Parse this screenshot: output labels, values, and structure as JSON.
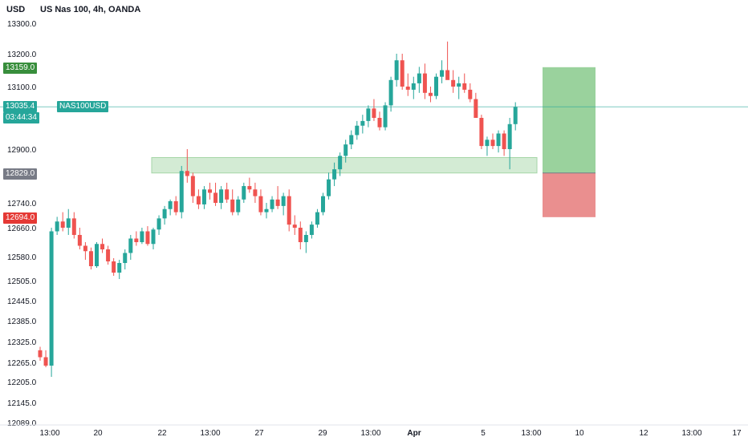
{
  "header": {
    "currency": "USD",
    "title": "US Nas 100, 4h, OANDA"
  },
  "price_tags": {
    "target": "13159.0",
    "current": "13035.4",
    "countdown": "03:44:34",
    "symbol": "NAS100USD",
    "entry": "12829.0",
    "stop": "12694.0"
  },
  "colors": {
    "up": "#26a69a",
    "down": "#ef5350",
    "target_zone": "#81c784",
    "stop_zone": "#e57373",
    "zone": "#c8e6c9",
    "current_line": "#26a69a",
    "entry_tag": "#787b86",
    "target_tag": "#388e3c",
    "stop_tag": "#e53935"
  },
  "chart_data": {
    "type": "candlestick",
    "symbol": "US Nas 100",
    "timeframe": "4h",
    "source": "OANDA",
    "y_ticks": [
      "13300.0",
      "13200.0",
      "13100.0",
      "12900.0",
      "12740.0",
      "12660.0",
      "12580.0",
      "12505.0",
      "12445.0",
      "12385.0",
      "12325.0",
      "12265.0",
      "12205.0",
      "12145.0",
      "12089.0"
    ],
    "x_ticks": [
      "13:00",
      "20",
      "22",
      "13:00",
      "27",
      "29",
      "13:00",
      "Apr",
      "5",
      "13:00",
      "10",
      "12",
      "13:00",
      "17"
    ],
    "candles": [
      [
        12300,
        12310,
        12270,
        12280
      ],
      [
        12280,
        12300,
        12250,
        12255
      ],
      [
        12255,
        12660,
        12220,
        12650
      ],
      [
        12650,
        12695,
        12640,
        12680
      ],
      [
        12680,
        12710,
        12650,
        12660
      ],
      [
        12660,
        12720,
        12640,
        12690
      ],
      [
        12690,
        12710,
        12630,
        12640
      ],
      [
        12640,
        12660,
        12600,
        12610
      ],
      [
        12610,
        12620,
        12570,
        12595
      ],
      [
        12595,
        12605,
        12540,
        12550
      ],
      [
        12550,
        12620,
        12545,
        12615
      ],
      [
        12615,
        12630,
        12590,
        12600
      ],
      [
        12600,
        12610,
        12555,
        12565
      ],
      [
        12565,
        12575,
        12520,
        12530
      ],
      [
        12530,
        12570,
        12510,
        12560
      ],
      [
        12560,
        12600,
        12540,
        12590
      ],
      [
        12590,
        12640,
        12570,
        12630
      ],
      [
        12630,
        12650,
        12610,
        12620
      ],
      [
        12620,
        12660,
        12615,
        12650
      ],
      [
        12650,
        12665,
        12610,
        12615
      ],
      [
        12615,
        12660,
        12600,
        12655
      ],
      [
        12655,
        12700,
        12640,
        12690
      ],
      [
        12690,
        12730,
        12670,
        12720
      ],
      [
        12720,
        12750,
        12700,
        12745
      ],
      [
        12745,
        12760,
        12700,
        12710
      ],
      [
        12710,
        12850,
        12690,
        12835
      ],
      [
        12835,
        12900,
        12800,
        12820
      ],
      [
        12820,
        12830,
        12740,
        12760
      ],
      [
        12760,
        12780,
        12720,
        12735
      ],
      [
        12735,
        12790,
        12720,
        12780
      ],
      [
        12780,
        12800,
        12750,
        12770
      ],
      [
        12770,
        12800,
        12730,
        12740
      ],
      [
        12740,
        12790,
        12720,
        12780
      ],
      [
        12780,
        12800,
        12740,
        12750
      ],
      [
        12750,
        12780,
        12700,
        12710
      ],
      [
        12710,
        12760,
        12700,
        12750
      ],
      [
        12750,
        12800,
        12740,
        12790
      ],
      [
        12790,
        12815,
        12770,
        12780
      ],
      [
        12780,
        12800,
        12740,
        12760
      ],
      [
        12760,
        12780,
        12700,
        12710
      ],
      [
        12710,
        12740,
        12690,
        12720
      ],
      [
        12720,
        12760,
        12710,
        12750
      ],
      [
        12750,
        12790,
        12720,
        12730
      ],
      [
        12730,
        12770,
        12700,
        12760
      ],
      [
        12760,
        12780,
        12650,
        12670
      ],
      [
        12670,
        12700,
        12640,
        12660
      ],
      [
        12660,
        12680,
        12600,
        12620
      ],
      [
        12620,
        12650,
        12590,
        12640
      ],
      [
        12640,
        12680,
        12630,
        12670
      ],
      [
        12670,
        12720,
        12660,
        12710
      ],
      [
        12710,
        12770,
        12700,
        12760
      ],
      [
        12760,
        12830,
        12750,
        12810
      ],
      [
        12810,
        12860,
        12790,
        12840
      ],
      [
        12840,
        12890,
        12820,
        12880
      ],
      [
        12880,
        12930,
        12860,
        12915
      ],
      [
        12915,
        12960,
        12900,
        12945
      ],
      [
        12945,
        12990,
        12930,
        12975
      ],
      [
        12975,
        13010,
        12950,
        12990
      ],
      [
        12990,
        13040,
        12970,
        13030
      ],
      [
        13030,
        13060,
        12990,
        13000
      ],
      [
        13000,
        13020,
        12960,
        12970
      ],
      [
        12970,
        13050,
        12960,
        13040
      ],
      [
        13040,
        13130,
        13020,
        13120
      ],
      [
        13120,
        13200,
        13100,
        13180
      ],
      [
        13180,
        13200,
        13090,
        13100
      ],
      [
        13100,
        13140,
        13070,
        13090
      ],
      [
        13090,
        13130,
        13060,
        13110
      ],
      [
        13110,
        13160,
        13080,
        13140
      ],
      [
        13140,
        13170,
        13060,
        13080
      ],
      [
        13080,
        13100,
        13050,
        13070
      ],
      [
        13070,
        13140,
        13060,
        13130
      ],
      [
        13130,
        13180,
        13110,
        13150
      ],
      [
        13150,
        13240,
        13130,
        13120
      ],
      [
        13120,
        13150,
        13080,
        13100
      ],
      [
        13100,
        13130,
        13060,
        13110
      ],
      [
        13110,
        13140,
        13080,
        13090
      ],
      [
        13090,
        13110,
        13050,
        13060
      ],
      [
        13060,
        13080,
        13000,
        13000
      ],
      [
        13000,
        13010,
        12900,
        12910
      ],
      [
        12910,
        12940,
        12880,
        12930
      ],
      [
        12930,
        12950,
        12900,
        12910
      ],
      [
        12910,
        12960,
        12890,
        12950
      ],
      [
        12950,
        12960,
        12880,
        12900
      ],
      [
        12900,
        13000,
        12840,
        12980
      ],
      [
        12980,
        13050,
        12960,
        13035
      ]
    ],
    "zone": {
      "from": 12829.0,
      "to": 12875.0
    },
    "position": {
      "target": 13159.0,
      "entry": 12829.0,
      "stop": 12694.0
    },
    "current_price": 13035.4
  }
}
